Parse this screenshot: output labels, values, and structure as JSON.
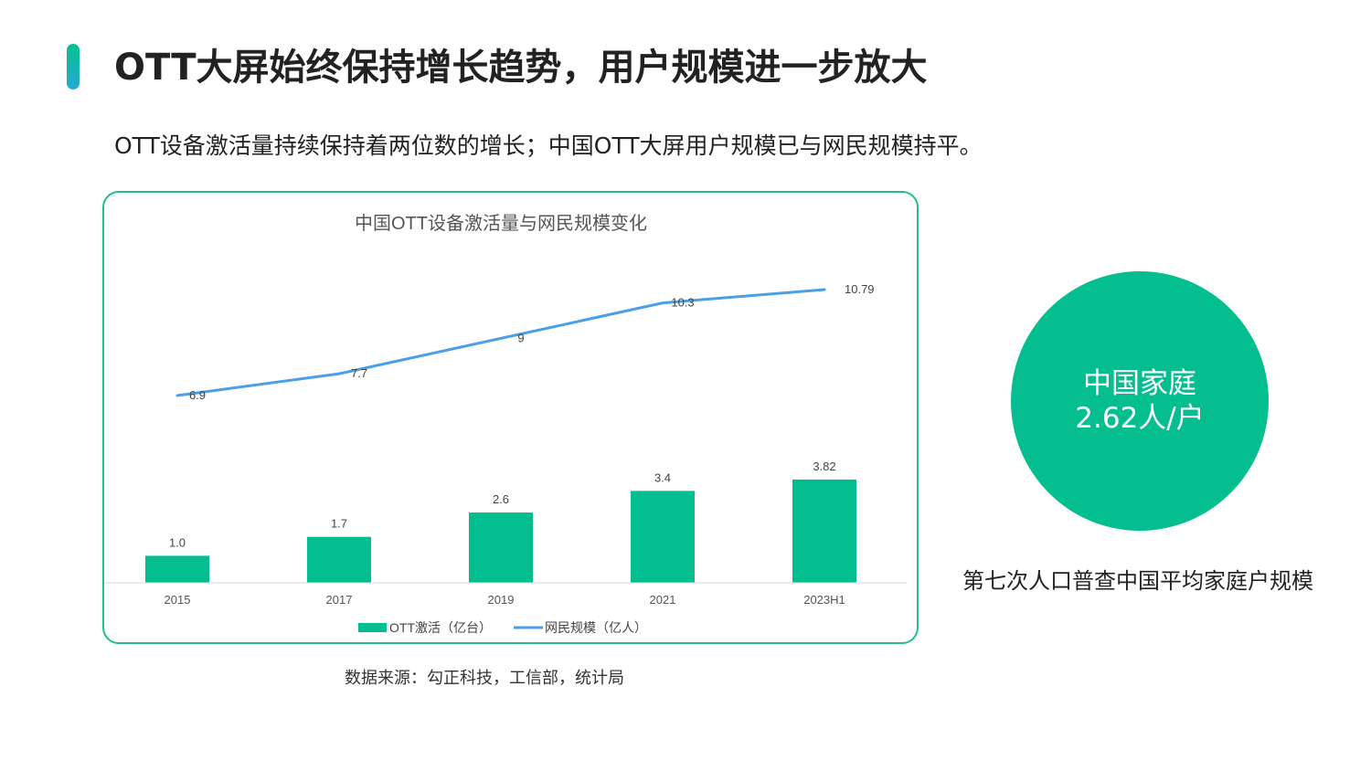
{
  "header": {
    "title": "OTT大屏始终保持增长趋势，用户规模进一步放大",
    "subtitle": "OTT设备激活量持续保持着两位数的增长；中国OTT大屏用户规模已与网民规模持平。"
  },
  "colors": {
    "accent_green": "#05BE8F",
    "line_blue": "#4A9FE6",
    "card_border": "#1FBF8F"
  },
  "chart_data": {
    "type": "bar",
    "title": "中国OTT设备激活量与网民规模变化",
    "categories": [
      "2015",
      "2017",
      "2019",
      "2021",
      "2023H1"
    ],
    "series": [
      {
        "name": "OTT激活（亿台）",
        "type": "bar",
        "values": [
          1.0,
          1.7,
          2.6,
          3.4,
          3.82
        ],
        "labels": [
          "1.0",
          "1.7",
          "2.6",
          "3.4",
          "3.82"
        ],
        "color": "#05BE8F"
      },
      {
        "name": "网民规模（亿人）",
        "type": "line",
        "values": [
          6.9,
          7.7,
          9,
          10.3,
          10.79
        ],
        "labels": [
          "6.9",
          "7.7",
          "9",
          "10.3",
          "10.79"
        ],
        "color": "#4A9FE6"
      }
    ],
    "legend": "bottom",
    "grid": false
  },
  "source": "数据来源：勾正科技，工信部，统计局",
  "highlight": {
    "line1": "中国家庭",
    "line2": "2.62人/户",
    "caption": "第七次人口普查中国平均家庭户规模"
  }
}
